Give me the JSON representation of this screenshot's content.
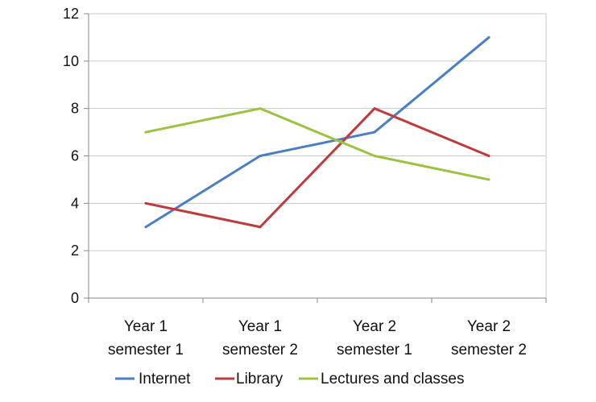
{
  "chart_data": {
    "type": "line",
    "title": "",
    "xlabel": "",
    "ylabel": "",
    "categories": [
      [
        "Year 1",
        "semester 1"
      ],
      [
        "Year 1",
        "semester 2"
      ],
      [
        "Year 2",
        "semester 1"
      ],
      [
        "Year 2",
        "semester 2"
      ]
    ],
    "ylim": [
      0,
      12
    ],
    "yticks": [
      0,
      2,
      4,
      6,
      8,
      10,
      12
    ],
    "grid": true,
    "legend_position": "bottom",
    "series": [
      {
        "name": "Internet",
        "color": "#4a7ec6",
        "values": [
          3,
          6,
          7,
          11
        ]
      },
      {
        "name": "Library",
        "color": "#c0393b",
        "values": [
          4,
          3,
          8,
          6
        ]
      },
      {
        "name": "Lectures and classes",
        "color": "#9bc340",
        "values": [
          7,
          8,
          6,
          5
        ]
      }
    ]
  }
}
